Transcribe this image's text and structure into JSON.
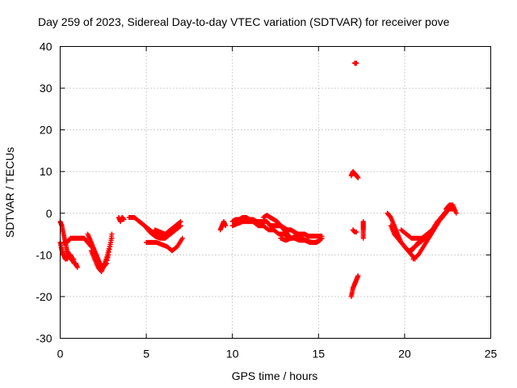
{
  "chart_data": {
    "type": "scatter",
    "title": "Day 259 of 2023, Sidereal Day-to-day VTEC variation (SDTVAR) for receiver pove",
    "xlabel": "GPS time / hours",
    "ylabel": "SDTVAR / TECUs",
    "xlim": [
      0,
      25
    ],
    "ylim": [
      -30,
      40
    ],
    "xticks": [
      "0",
      "5",
      "10",
      "15",
      "20",
      "25"
    ],
    "yticks": [
      "-30",
      "-20",
      "-10",
      "0",
      "10",
      "20",
      "30",
      "40"
    ],
    "grid": true,
    "marker": "plus",
    "color": "#ff0000",
    "series": [
      {
        "name": "SDTVAR",
        "segments": [
          {
            "x": [
              0.0,
              0.1,
              0.2,
              0.3,
              0.4,
              0.5,
              0.6,
              0.7,
              0.8,
              0.9,
              1.0
            ],
            "y": [
              -2,
              -3,
              -5,
              -7,
              -9,
              -10,
              -11,
              -11,
              -12,
              -12,
              -13
            ]
          },
          {
            "x": [
              0.0,
              0.1,
              0.2,
              0.3,
              0.4,
              0.5,
              0.6,
              0.7,
              0.8
            ],
            "y": [
              -7,
              -9,
              -10,
              -11,
              -11,
              -10,
              -10,
              -11,
              -11
            ]
          },
          {
            "x": [
              0.2,
              0.4,
              0.6,
              0.8,
              1.0,
              1.2,
              1.4,
              1.6,
              1.8
            ],
            "y": [
              -7,
              -7,
              -6,
              -6,
              -6,
              -6,
              -6,
              -7,
              -8
            ]
          },
          {
            "x": [
              1.6,
              1.8,
              2.0,
              2.2,
              2.4,
              2.6,
              2.8,
              3.0
            ],
            "y": [
              -5,
              -7,
              -9,
              -11,
              -13,
              -12,
              -9,
              -6
            ]
          },
          {
            "x": [
              1.7,
              1.9,
              2.1,
              2.3,
              2.5,
              2.7,
              2.9,
              3.0
            ],
            "y": [
              -6,
              -8,
              -10,
              -12,
              -13,
              -12,
              -8,
              -5
            ]
          },
          {
            "x": [
              1.8,
              2.0,
              2.2,
              2.4,
              2.6,
              2.8
            ],
            "y": [
              -9,
              -11,
              -13,
              -14,
              -12,
              -10
            ]
          },
          {
            "x": [
              3.4,
              3.5,
              3.6,
              3.7
            ],
            "y": [
              -1,
              -2,
              -1,
              -1.5
            ]
          },
          {
            "x": [
              4.0,
              4.3,
              4.6,
              4.9,
              5.2,
              5.5,
              5.8,
              6.1,
              6.4,
              6.7,
              7.0
            ],
            "y": [
              -1,
              -1,
              -2,
              -3,
              -4,
              -5,
              -5,
              -5,
              -4,
              -3,
              -2
            ]
          },
          {
            "x": [
              4.6,
              4.9,
              5.2,
              5.5,
              5.8,
              6.1,
              6.4,
              6.7,
              7.0
            ],
            "y": [
              -2,
              -3,
              -4.5,
              -5.5,
              -6,
              -6,
              -5,
              -4,
              -3
            ]
          },
          {
            "x": [
              5.0,
              5.3,
              5.6,
              5.9,
              6.2,
              6.5,
              6.8,
              7.1
            ],
            "y": [
              -7,
              -7,
              -7,
              -7.5,
              -8,
              -9,
              -8,
              -6
            ]
          },
          {
            "x": [
              5.5,
              5.8,
              6.1,
              6.4,
              6.7,
              7.0
            ],
            "y": [
              -4,
              -4.5,
              -5,
              -5,
              -4,
              -3
            ]
          },
          {
            "x": [
              9.3,
              9.4,
              9.5,
              9.6
            ],
            "y": [
              -4,
              -3,
              -2,
              -3
            ]
          },
          {
            "x": [
              10.0,
              10.2,
              10.4,
              10.6,
              10.8,
              11.0,
              11.2,
              11.4,
              11.6,
              11.8,
              12.0,
              12.2,
              12.4,
              12.6,
              12.8,
              13.0,
              13.2,
              13.4,
              13.6,
              13.8,
              14.0,
              14.2,
              14.4,
              14.6,
              14.8,
              15.0,
              15.2
            ],
            "y": [
              -2,
              -1.5,
              -1.5,
              -1,
              -1,
              -1.5,
              -1.5,
              -2,
              -2,
              -2,
              -2,
              -3,
              -3,
              -3,
              -3,
              -3.5,
              -4,
              -4,
              -4.5,
              -5,
              -5,
              -5,
              -5.5,
              -5.5,
              -5.5,
              -5.5,
              -5.5
            ]
          },
          {
            "x": [
              10.0,
              10.3,
              10.6,
              10.9,
              11.2,
              11.5,
              11.8,
              12.1,
              12.4,
              12.7,
              13.0,
              13.3,
              13.6,
              13.9,
              14.2,
              14.5,
              14.8,
              15.1
            ],
            "y": [
              -3,
              -2.5,
              -2,
              -2,
              -2,
              -3,
              -3,
              -4,
              -4,
              -5,
              -5,
              -6,
              -6,
              -6.5,
              -6.5,
              -7,
              -7,
              -6.5
            ]
          },
          {
            "x": [
              11.8,
              12.0,
              12.2,
              12.4,
              12.6,
              12.8,
              13.0,
              13.2,
              13.4
            ],
            "y": [
              -1,
              -0.5,
              -1,
              -1.5,
              -2,
              -3,
              -4,
              -5,
              -6
            ]
          },
          {
            "x": [
              12.8,
              13.1,
              13.4,
              13.7,
              14.0,
              14.3,
              14.6,
              14.9,
              15.2
            ],
            "y": [
              -6,
              -6.5,
              -6,
              -5.5,
              -6,
              -6.5,
              -7,
              -7,
              -6
            ]
          },
          {
            "x": [
              17.1,
              17.15,
              17.2
            ],
            "y": [
              36,
              36,
              36
            ]
          },
          {
            "x": [
              16.9,
              17.0,
              17.1,
              17.2,
              17.3
            ],
            "y": [
              9,
              10,
              9.5,
              9,
              8.5
            ]
          },
          {
            "x": [
              16.9,
              17.0,
              17.1,
              17.2,
              17.3
            ],
            "y": [
              -20,
              -18,
              -17,
              -16,
              -15
            ]
          },
          {
            "x": [
              17.0,
              17.1,
              17.2
            ],
            "y": [
              -4,
              -4.5,
              -4.5
            ]
          },
          {
            "x": [
              17.6,
              17.6,
              17.6,
              17.6
            ],
            "y": [
              -2,
              -3,
              -4,
              -6
            ]
          },
          {
            "x": [
              19.0,
              19.2,
              19.4,
              19.6,
              19.8,
              20.0,
              20.2,
              20.4,
              20.6
            ],
            "y": [
              0,
              -1,
              -3,
              -5,
              -7,
              -8,
              -9,
              -10,
              -11
            ]
          },
          {
            "x": [
              19.2,
              19.4,
              19.6,
              19.8,
              20.0,
              20.2,
              20.4,
              20.6,
              20.8
            ],
            "y": [
              -3,
              -5,
              -6,
              -7,
              -8,
              -9,
              -9,
              -8,
              -7
            ]
          },
          {
            "x": [
              19.8,
              20.1,
              20.4,
              20.7,
              21.0,
              21.3,
              21.6,
              21.9,
              22.2,
              22.5,
              22.8
            ],
            "y": [
              -4,
              -5,
              -6,
              -6,
              -6,
              -5,
              -4,
              -2,
              -1,
              1,
              1
            ]
          },
          {
            "x": [
              20.3,
              20.6,
              20.9,
              21.2,
              21.5,
              21.8,
              22.1,
              22.4,
              22.7
            ],
            "y": [
              -9,
              -8,
              -7,
              -6,
              -5,
              -3,
              -1,
              0,
              2
            ]
          },
          {
            "x": [
              20.5,
              20.8,
              21.1,
              21.4,
              21.7,
              22.0,
              22.3,
              22.6
            ],
            "y": [
              -11,
              -10,
              -8,
              -6,
              -4,
              -2,
              0,
              1
            ]
          },
          {
            "x": [
              22.4,
              22.6,
              22.8,
              23.0
            ],
            "y": [
              1,
              2,
              2,
              0
            ]
          }
        ]
      }
    ]
  }
}
